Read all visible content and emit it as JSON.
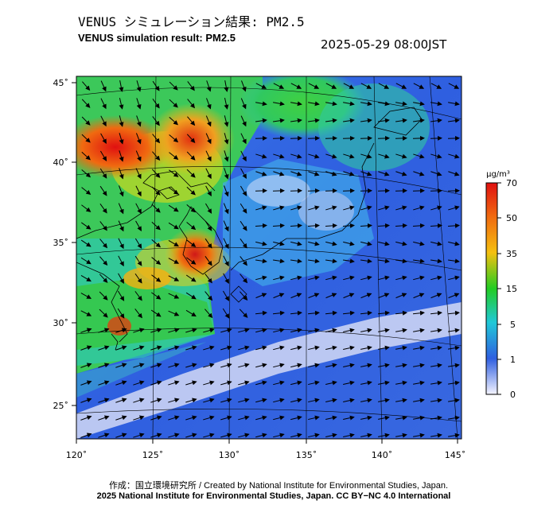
{
  "title_jp": "VENUS シミュレーション結果: PM2.5",
  "title_en": "VENUS simulation result: PM2.5",
  "timestamp": "2025-05-29 08:00JST",
  "colorbar": {
    "unit": "μg/m³",
    "ticks": [
      "70",
      "50",
      "35",
      "15",
      "5",
      "1",
      "0"
    ],
    "colors": [
      "#e01010",
      "#f06a10",
      "#f5c010",
      "#22cc22",
      "#20c8d8",
      "#2f5fe0",
      "#f0f0ff"
    ]
  },
  "map": {
    "lat_labels": [
      "45˚",
      "40˚",
      "35˚",
      "30˚",
      "25˚"
    ],
    "lon_labels": [
      "120˚",
      "125˚",
      "130˚",
      "135˚",
      "140˚",
      "145˚"
    ]
  },
  "credit_1": "作成：国立環境研究所 / Created by National Institute for Environmental Studies, Japan.",
  "credit_2": "2025 National Institute for Environmental Studies, Japan. CC BY−NC 4.0 International"
}
